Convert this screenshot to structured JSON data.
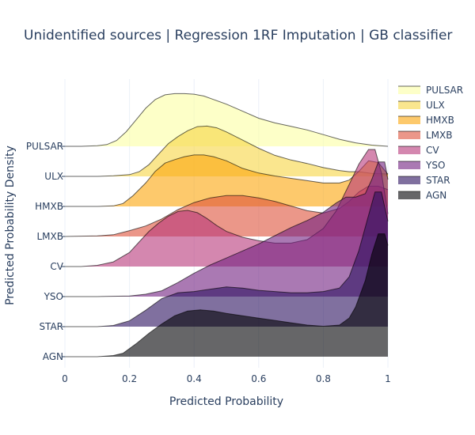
{
  "chart_data": {
    "type": "area",
    "title": "Unidentified sources | Regression 1RF Imputation | GB classifier",
    "xlabel": "Predicted Probability",
    "ylabel": "Predicted Probability Density",
    "xlim": [
      0,
      1
    ],
    "xticks": [
      {
        "v": 0,
        "label": "0"
      },
      {
        "v": 0.2,
        "label": "0.2"
      },
      {
        "v": 0.4,
        "label": "0.4"
      },
      {
        "v": 0.6,
        "label": "0.6"
      },
      {
        "v": 0.8,
        "label": "0.8"
      },
      {
        "v": 1,
        "label": "1"
      }
    ],
    "grid": true,
    "legend_position": "right",
    "categories": [
      "PULSAR",
      "ULX",
      "HMXB",
      "LMXB",
      "CV",
      "YSO",
      "STAR",
      "AGN"
    ],
    "series": [
      {
        "name": "PULSAR",
        "color": "#fcffa4",
        "x": [
          0,
          0.05,
          0.1,
          0.13,
          0.16,
          0.19,
          0.22,
          0.25,
          0.28,
          0.31,
          0.34,
          0.37,
          0.4,
          0.43,
          0.46,
          0.5,
          0.55,
          0.6,
          0.65,
          0.7,
          0.75,
          0.8,
          0.85,
          0.9,
          0.95,
          1
        ],
        "y": [
          0,
          0,
          0.01,
          0.03,
          0.1,
          0.25,
          0.45,
          0.65,
          0.8,
          0.88,
          0.9,
          0.9,
          0.89,
          0.86,
          0.8,
          0.72,
          0.6,
          0.48,
          0.4,
          0.34,
          0.28,
          0.2,
          0.12,
          0.06,
          0.02,
          0
        ]
      },
      {
        "name": "ULX",
        "color": "#f6d543",
        "x": [
          0,
          0.1,
          0.15,
          0.2,
          0.23,
          0.26,
          0.29,
          0.32,
          0.35,
          0.38,
          0.41,
          0.44,
          0.47,
          0.5,
          0.55,
          0.6,
          0.65,
          0.7,
          0.75,
          0.8,
          0.85,
          0.88,
          0.91,
          0.95,
          1
        ],
        "y": [
          0,
          0,
          0.01,
          0.03,
          0.08,
          0.2,
          0.38,
          0.56,
          0.68,
          0.78,
          0.85,
          0.86,
          0.83,
          0.76,
          0.62,
          0.48,
          0.36,
          0.28,
          0.22,
          0.15,
          0.1,
          0.08,
          0.08,
          0.05,
          0.04
        ]
      },
      {
        "name": "HMXB",
        "color": "#fca50a",
        "x": [
          0,
          0.1,
          0.15,
          0.18,
          0.21,
          0.25,
          0.28,
          0.31,
          0.34,
          0.37,
          0.4,
          0.43,
          0.46,
          0.5,
          0.55,
          0.6,
          0.65,
          0.7,
          0.75,
          0.8,
          0.85,
          0.88,
          0.91,
          0.94,
          0.97,
          1
        ],
        "y": [
          0,
          0,
          0.01,
          0.05,
          0.18,
          0.4,
          0.6,
          0.74,
          0.8,
          0.85,
          0.88,
          0.88,
          0.85,
          0.78,
          0.65,
          0.57,
          0.52,
          0.48,
          0.44,
          0.4,
          0.4,
          0.45,
          0.6,
          0.78,
          0.75,
          0.55
        ]
      },
      {
        "name": "LMXB",
        "color": "#dd513a",
        "x": [
          0,
          0.1,
          0.15,
          0.2,
          0.25,
          0.3,
          0.35,
          0.4,
          0.45,
          0.5,
          0.55,
          0.6,
          0.65,
          0.7,
          0.75,
          0.8,
          0.85,
          0.88,
          0.91,
          0.94,
          0.97,
          1
        ],
        "y": [
          0,
          0.01,
          0.03,
          0.1,
          0.18,
          0.3,
          0.46,
          0.58,
          0.66,
          0.7,
          0.7,
          0.66,
          0.6,
          0.52,
          0.44,
          0.4,
          0.48,
          0.6,
          0.76,
          0.86,
          0.86,
          0.8
        ]
      },
      {
        "name": "CV",
        "color": "#b73779",
        "x": [
          0,
          0.05,
          0.1,
          0.15,
          0.2,
          0.23,
          0.26,
          0.29,
          0.32,
          0.35,
          0.38,
          0.41,
          0.44,
          0.47,
          0.5,
          0.55,
          0.6,
          0.65,
          0.7,
          0.75,
          0.8,
          0.84,
          0.88,
          0.91,
          0.94,
          0.96,
          0.98,
          1
        ],
        "y": [
          0,
          0,
          0.02,
          0.08,
          0.24,
          0.42,
          0.6,
          0.74,
          0.86,
          0.94,
          0.96,
          0.92,
          0.82,
          0.7,
          0.6,
          0.5,
          0.44,
          0.4,
          0.4,
          0.46,
          0.65,
          0.95,
          1.4,
          1.75,
          2.0,
          2.0,
          1.6,
          0.9
        ]
      },
      {
        "name": "YSO",
        "color": "#721f81",
        "x": [
          0,
          0.1,
          0.2,
          0.25,
          0.3,
          0.35,
          0.4,
          0.45,
          0.5,
          0.55,
          0.6,
          0.65,
          0.7,
          0.75,
          0.8,
          0.84,
          0.87,
          0.9,
          0.93,
          0.95,
          0.97,
          0.99,
          1
        ],
        "y": [
          0,
          0,
          0.01,
          0.04,
          0.1,
          0.24,
          0.4,
          0.54,
          0.66,
          0.78,
          0.9,
          1.04,
          1.18,
          1.3,
          1.44,
          1.6,
          1.7,
          1.7,
          1.76,
          2.0,
          2.3,
          2.3,
          2.0
        ]
      },
      {
        "name": "STAR",
        "color": "#2c115f",
        "x": [
          0,
          0.1,
          0.15,
          0.2,
          0.25,
          0.3,
          0.35,
          0.4,
          0.45,
          0.5,
          0.55,
          0.6,
          0.65,
          0.7,
          0.75,
          0.8,
          0.85,
          0.88,
          0.91,
          0.94,
          0.96,
          0.98,
          1
        ],
        "y": [
          0,
          0,
          0.02,
          0.1,
          0.28,
          0.48,
          0.58,
          0.6,
          0.64,
          0.68,
          0.66,
          0.62,
          0.6,
          0.58,
          0.58,
          0.6,
          0.66,
          0.85,
          1.3,
          1.9,
          2.3,
          2.3,
          1.8
        ]
      },
      {
        "name": "AGN",
        "color": "#000004",
        "x": [
          0,
          0.1,
          0.15,
          0.18,
          0.22,
          0.26,
          0.3,
          0.34,
          0.38,
          0.42,
          0.46,
          0.5,
          0.55,
          0.6,
          0.65,
          0.7,
          0.75,
          0.8,
          0.85,
          0.88,
          0.9,
          0.93,
          0.95,
          0.97,
          0.99,
          1
        ],
        "y": [
          0,
          0,
          0.02,
          0.06,
          0.22,
          0.4,
          0.56,
          0.7,
          0.78,
          0.8,
          0.78,
          0.74,
          0.7,
          0.66,
          0.62,
          0.58,
          0.54,
          0.52,
          0.54,
          0.66,
          0.85,
          1.3,
          1.75,
          2.1,
          2.1,
          1.9
        ]
      }
    ]
  }
}
